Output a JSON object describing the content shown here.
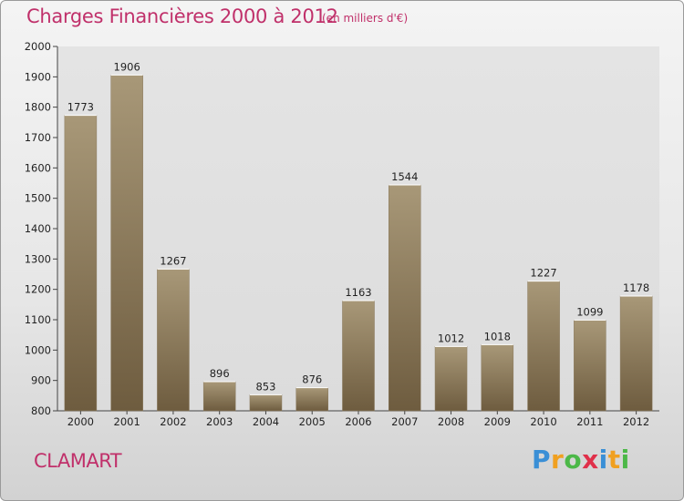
{
  "title": "Charges Financières 2000 à 2012",
  "subtitle": "(en milliers d'€)",
  "city": "CLAMART",
  "brand": {
    "letters": [
      "P",
      "r",
      "o",
      "x",
      "i",
      "t",
      "i"
    ],
    "colors": [
      "#3a8fd6",
      "#f0a020",
      "#4cb848",
      "#e0304a",
      "#3a8fd6",
      "#f0a020",
      "#4cb848"
    ]
  },
  "colors": {
    "title": "#c0306a",
    "bar_top": "#a89878",
    "bar_bottom": "#6e5c3f",
    "plot_bg": "#e2e2e2"
  },
  "chart_data": {
    "type": "bar",
    "categories": [
      "2000",
      "2001",
      "2002",
      "2003",
      "2004",
      "2005",
      "2006",
      "2007",
      "2008",
      "2009",
      "2010",
      "2011",
      "2012"
    ],
    "values": [
      1773,
      1906,
      1267,
      896,
      853,
      876,
      1163,
      1544,
      1012,
      1018,
      1227,
      1099,
      1178
    ],
    "ylim": [
      800,
      2000
    ],
    "yticks": [
      800,
      900,
      1000,
      1100,
      1200,
      1300,
      1400,
      1500,
      1600,
      1700,
      1800,
      1900,
      2000
    ],
    "grid": false,
    "xlabel": "",
    "ylabel": ""
  }
}
